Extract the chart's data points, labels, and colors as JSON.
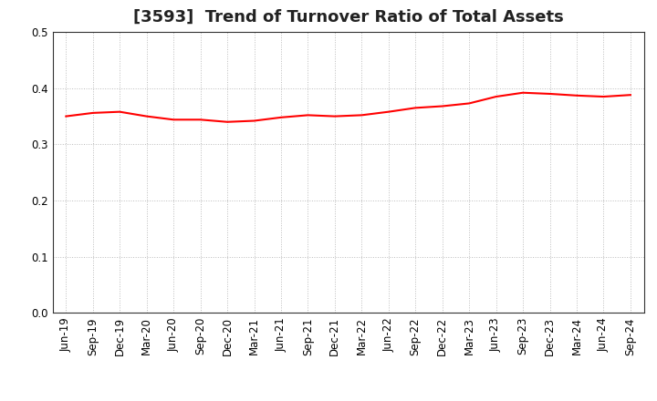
{
  "title": "[3593]  Trend of Turnover Ratio of Total Assets",
  "x_labels": [
    "Jun-19",
    "Sep-19",
    "Dec-19",
    "Mar-20",
    "Jun-20",
    "Sep-20",
    "Dec-20",
    "Mar-21",
    "Jun-21",
    "Sep-21",
    "Dec-21",
    "Mar-22",
    "Jun-22",
    "Sep-22",
    "Dec-22",
    "Mar-23",
    "Jun-23",
    "Sep-23",
    "Dec-23",
    "Mar-24",
    "Jun-24",
    "Sep-24"
  ],
  "values": [
    0.35,
    0.356,
    0.358,
    0.35,
    0.344,
    0.344,
    0.34,
    0.342,
    0.348,
    0.352,
    0.35,
    0.352,
    0.358,
    0.365,
    0.368,
    0.373,
    0.385,
    0.392,
    0.39,
    0.387,
    0.385,
    0.388
  ],
  "line_color": "#ff0000",
  "line_width": 1.5,
  "ylim": [
    0.0,
    0.5
  ],
  "yticks": [
    0.0,
    0.1,
    0.2,
    0.3,
    0.4,
    0.5
  ],
  "grid_color": "#bbbbbb",
  "bg_color": "#ffffff",
  "title_fontsize": 13,
  "tick_fontsize": 8.5
}
